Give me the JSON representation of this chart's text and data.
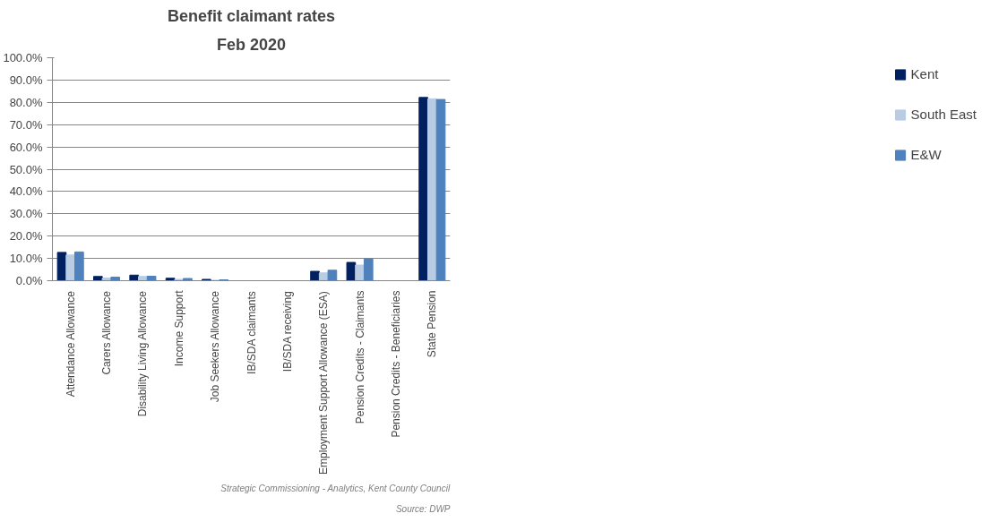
{
  "chart_data": {
    "type": "bar",
    "title": "Benefit claimant rates",
    "subtitle": "Feb 2020",
    "categories": [
      "Attendance Allowance",
      "Carers Allowance",
      "Disability Living Allowance",
      "Income Support",
      "Job Seekers Allowance",
      "IB/SDA claimants",
      "IB/SDA receiving",
      "Employment Support Allowance (ESA)",
      "Pension Credits - Claimants",
      "Pension Credits - Beneficiaries",
      "State Pension"
    ],
    "series": [
      {
        "name": "Kent",
        "color": "#002060",
        "values": [
          12.7,
          1.9,
          2.5,
          1.1,
          0.6,
          0,
          0,
          4.2,
          8.2,
          0,
          82.2
        ]
      },
      {
        "name": "South East",
        "color": "#b8cce4",
        "values": [
          11.5,
          1.2,
          1.9,
          0.6,
          0.2,
          0,
          0,
          3.5,
          7.0,
          0,
          81.6
        ]
      },
      {
        "name": "E&W",
        "color": "#4f81bd",
        "values": [
          12.9,
          1.6,
          2.0,
          1.0,
          0.4,
          0,
          0,
          4.7,
          9.8,
          0,
          81.3
        ]
      }
    ],
    "ylim": [
      0,
      100
    ],
    "yticks": [
      {
        "value": 0,
        "label": "0.0%"
      },
      {
        "value": 10,
        "label": "10.0%"
      },
      {
        "value": 20,
        "label": "20.0%"
      },
      {
        "value": 30,
        "label": "30.0%"
      },
      {
        "value": 40,
        "label": "40.0%"
      },
      {
        "value": 50,
        "label": "50.0%"
      },
      {
        "value": 60,
        "label": "60.0%"
      },
      {
        "value": 70,
        "label": "70.0%"
      },
      {
        "value": 80,
        "label": "80.0%"
      },
      {
        "value": 90,
        "label": "90.0%"
      },
      {
        "value": 100,
        "label": "100.0%"
      }
    ],
    "grid": "y",
    "legend": "right",
    "annotations": [
      "Source: DWP",
      "Strategic Commissioning - Analytics, Kent County Council"
    ]
  }
}
